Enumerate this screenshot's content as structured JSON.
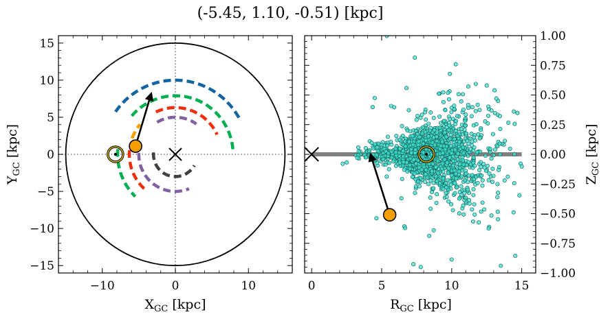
{
  "title": "(-5.45, 1.10, -0.51) [kpc]",
  "chart_data": [
    {
      "type": "scatter",
      "panel": "left",
      "xlabel": "X",
      "xlabel_sub": "GC",
      "xlabel_unit": " [kpc]",
      "ylabel": "Y",
      "ylabel_sub": "GC",
      "ylabel_unit": " [kpc]",
      "xlim": [
        -16,
        16
      ],
      "ylim": [
        -16,
        16
      ],
      "xticks": [
        -10,
        0,
        10
      ],
      "yticks": [
        -15,
        -10,
        -5,
        0,
        5,
        10,
        15
      ],
      "xtick_labels": [
        "−10",
        "0",
        "10"
      ],
      "ytick_labels": [
        "−15",
        "−10",
        "−5",
        "0",
        "5",
        "10",
        "15"
      ],
      "grid": false,
      "boundary_circle_radius": 15,
      "galactic_center": [
        0,
        0
      ],
      "sun": [
        -8.2,
        0
      ],
      "object": [
        -5.45,
        1.1
      ],
      "velocity_arrow_end": [
        -3.3,
        8.2
      ],
      "spiral_arms": [
        {
          "color": "#1464a0",
          "radius": 10.0,
          "start_deg": 145,
          "end_deg": 28
        },
        {
          "color": "#00b050",
          "radius": 7.9,
          "start_deg": 139,
          "end_deg": 5
        },
        {
          "color": "#f5a000",
          "radius": 6.3,
          "start_deg": 160,
          "end_deg": 140
        },
        {
          "color": "#ee3010",
          "radius": 6.3,
          "start_deg": 115,
          "end_deg": 25
        },
        {
          "color": "#ee3010",
          "radius": 6.3,
          "start_deg": 175,
          "end_deg": 228
        },
        {
          "color": "#00b050",
          "radius": 7.9,
          "start_deg": 175,
          "end_deg": 226
        },
        {
          "color": "#8060a0",
          "radius": 5.0,
          "start_deg": 120,
          "end_deg": 55
        },
        {
          "color": "#8060a0",
          "radius": 5.0,
          "start_deg": 178,
          "end_deg": 292
        },
        {
          "color": "#404040",
          "radius": 3.0,
          "start_deg": 175,
          "end_deg": 330
        }
      ]
    },
    {
      "type": "scatter",
      "panel": "right",
      "xlabel": "R",
      "xlabel_sub": "GC",
      "xlabel_unit": " [kpc]",
      "ylabel": "Z",
      "ylabel_sub": "GC",
      "ylabel_unit": " [kpc]",
      "xlim": [
        -0.5,
        16
      ],
      "ylim": [
        -1.0,
        1.0
      ],
      "xticks": [
        0,
        5,
        10,
        15
      ],
      "yticks": [
        -1.0,
        -0.75,
        -0.5,
        -0.25,
        0.0,
        0.25,
        0.5,
        0.75,
        1.0
      ],
      "xtick_labels": [
        "0",
        "5",
        "10",
        "15"
      ],
      "ytick_labels": [
        "−1.00",
        "−0.75",
        "−0.50",
        "−0.25",
        "0.00",
        "0.25",
        "0.50",
        "0.75",
        "1.00"
      ],
      "grid": false,
      "disk_line": {
        "x": [
          0,
          15
        ],
        "z": 0.0,
        "color": "#808080"
      },
      "galactic_center": [
        0,
        0
      ],
      "sun": [
        8.2,
        0.0
      ],
      "object": [
        5.57,
        -0.51
      ],
      "velocity_arrow_end": [
        4.2,
        0.0
      ],
      "star_cloud": {
        "n": 1500,
        "center_r": 8.5,
        "color": "#40e0d0",
        "edge": "#1a6b63"
      }
    }
  ]
}
